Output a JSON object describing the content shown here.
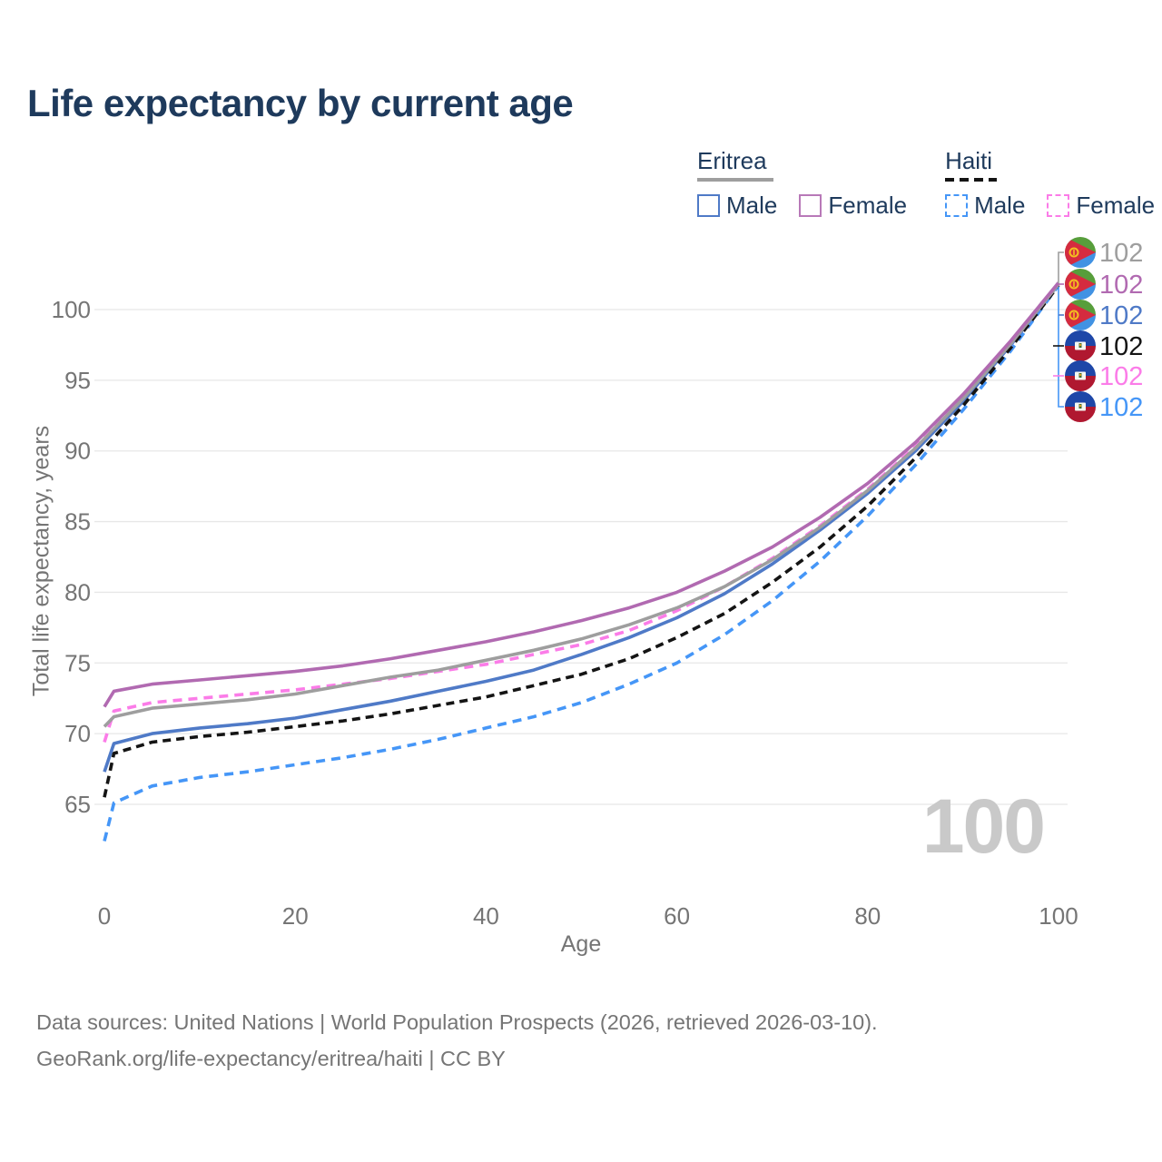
{
  "title": "Life expectancy by current age",
  "legend": {
    "groups": [
      {
        "name": "Eritrea",
        "line_style": "solid",
        "line_color": "#9e9e9e",
        "items": [
          {
            "label": "Male",
            "color": "#4f7ac7",
            "dashed": false
          },
          {
            "label": "Female",
            "color": "#b879b8",
            "dashed": false
          }
        ]
      },
      {
        "name": "Haiti",
        "line_style": "dashed",
        "line_color": "#141414",
        "items": [
          {
            "label": "Male",
            "color": "#4596f7",
            "dashed": true
          },
          {
            "label": "Female",
            "color": "#fb7ce8",
            "dashed": true
          }
        ]
      }
    ]
  },
  "watermark": "100",
  "footer": {
    "line1": "Data sources: United Nations | World Population Prospects (2026, retrieved 2026-03-10).",
    "line2": "GeoRank.org/life-expectancy/eritrea/haiti | CC BY"
  },
  "right_labels": [
    {
      "flag": "eritrea",
      "value": "102",
      "color": "#9e9e9e"
    },
    {
      "flag": "eritrea",
      "value": "102",
      "color": "#b16ab1"
    },
    {
      "flag": "eritrea",
      "value": "102",
      "color": "#4f7ac7"
    },
    {
      "flag": "haiti",
      "value": "102",
      "color": "#141414"
    },
    {
      "flag": "haiti",
      "value": "102",
      "color": "#fb7ce8"
    },
    {
      "flag": "haiti",
      "value": "102",
      "color": "#4596f7"
    }
  ],
  "chart_data": {
    "type": "line",
    "title": "Life expectancy by current age",
    "xlabel": "Age",
    "ylabel": "Total life expectancy, years",
    "xlim": [
      0,
      100
    ],
    "ylim": [
      62,
      103
    ],
    "xticks": [
      0,
      20,
      40,
      60,
      80,
      100
    ],
    "yticks": [
      65,
      70,
      75,
      80,
      85,
      90,
      95,
      100
    ],
    "grid": "horizontal",
    "legend_position": "top-right",
    "x": [
      0,
      1,
      5,
      10,
      15,
      20,
      25,
      30,
      35,
      40,
      45,
      50,
      55,
      60,
      65,
      70,
      75,
      80,
      85,
      90,
      95,
      100
    ],
    "series": [
      {
        "name": "Eritrea Female",
        "country": "eritrea",
        "sex": "female",
        "color": "#b16ab1",
        "dash": null,
        "end_label": "102",
        "values": [
          71.9,
          73.0,
          73.5,
          73.8,
          74.1,
          74.4,
          74.8,
          75.3,
          75.9,
          76.5,
          77.2,
          78.0,
          78.9,
          80.0,
          81.5,
          83.2,
          85.3,
          87.7,
          90.6,
          94.0,
          97.8,
          101.9
        ]
      },
      {
        "name": "Eritrea",
        "country": "eritrea",
        "sex": "both",
        "color": "#9e9e9e",
        "dash": null,
        "end_label": "102",
        "values": [
          70.5,
          71.2,
          71.8,
          72.1,
          72.4,
          72.8,
          73.4,
          74.0,
          74.5,
          75.2,
          75.9,
          76.7,
          77.7,
          78.9,
          80.4,
          82.3,
          84.6,
          87.2,
          90.2,
          93.7,
          97.6,
          101.8
        ]
      },
      {
        "name": "Eritrea Male",
        "country": "eritrea",
        "sex": "male",
        "color": "#4f7ac7",
        "dash": null,
        "end_label": "102",
        "values": [
          67.3,
          69.3,
          70.0,
          70.4,
          70.7,
          71.1,
          71.7,
          72.3,
          73.0,
          73.7,
          74.5,
          75.6,
          76.8,
          78.2,
          79.9,
          82.0,
          84.4,
          87.0,
          90.0,
          93.5,
          97.5,
          101.8
        ]
      },
      {
        "name": "Haiti Female",
        "country": "haiti",
        "sex": "female",
        "color": "#fb7ce8",
        "dash": [
          10,
          7
        ],
        "end_label": "102",
        "values": [
          69.4,
          71.6,
          72.2,
          72.5,
          72.8,
          73.1,
          73.5,
          73.9,
          74.4,
          74.9,
          75.6,
          76.3,
          77.3,
          78.7,
          80.4,
          82.4,
          84.7,
          87.3,
          90.3,
          93.8,
          97.6,
          101.8
        ]
      },
      {
        "name": "Haiti",
        "country": "haiti",
        "sex": "both",
        "color": "#141414",
        "dash": [
          9,
          6
        ],
        "end_label": "102",
        "values": [
          65.5,
          68.6,
          69.4,
          69.8,
          70.1,
          70.5,
          70.9,
          71.4,
          72.0,
          72.6,
          73.4,
          74.2,
          75.3,
          76.8,
          78.5,
          80.7,
          83.2,
          86.1,
          89.5,
          93.2,
          97.3,
          101.7
        ]
      },
      {
        "name": "Haiti Male",
        "country": "haiti",
        "sex": "male",
        "color": "#4596f7",
        "dash": [
          10,
          7
        ],
        "end_label": "102",
        "values": [
          62.4,
          65.1,
          66.3,
          66.9,
          67.3,
          67.8,
          68.3,
          68.9,
          69.6,
          70.4,
          71.2,
          72.2,
          73.5,
          75.0,
          77.0,
          79.4,
          82.2,
          85.4,
          89.0,
          92.9,
          97.1,
          101.7
        ]
      }
    ]
  }
}
